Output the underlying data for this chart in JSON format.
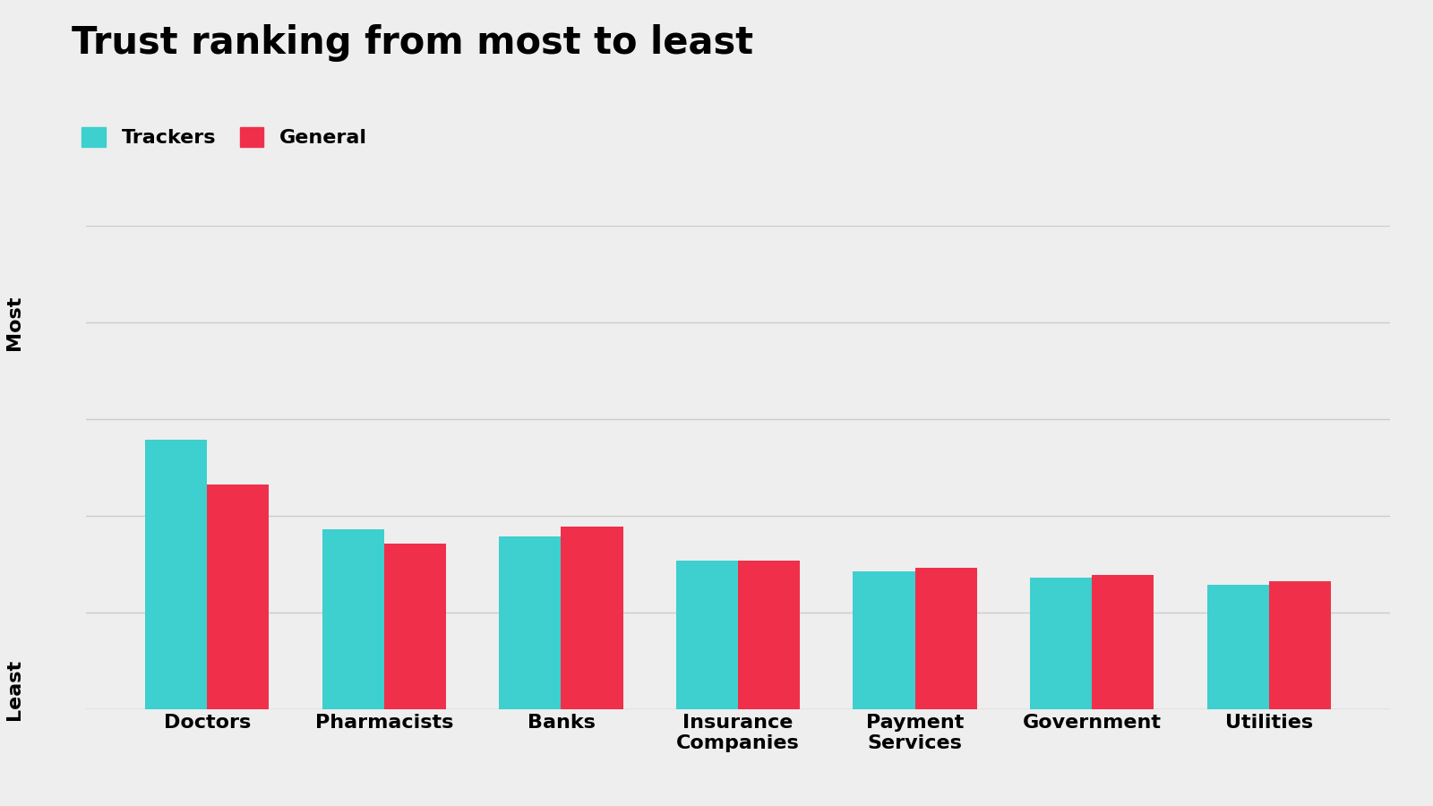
{
  "title": "Trust ranking from most to least",
  "categories": [
    "Doctors",
    "Pharmacists",
    "Banks",
    "Insurance\nCompanies",
    "Payment\nServices",
    "Government",
    "Utilities"
  ],
  "trackers": [
    78,
    52,
    50,
    43,
    40,
    38,
    36
  ],
  "general": [
    65,
    48,
    53,
    43,
    41,
    39,
    37
  ],
  "tracker_color": "#3ecfcf",
  "general_color": "#f0304a",
  "background_color": "#eeeeee",
  "title_fontsize": 30,
  "legend_fontsize": 16,
  "ylabel_most": "Most",
  "ylabel_least": "Least",
  "bar_width": 0.35,
  "ylim": [
    0,
    140
  ],
  "grid_color": "#cccccc",
  "grid_ticks": [
    0,
    28,
    56,
    84,
    112,
    140
  ]
}
